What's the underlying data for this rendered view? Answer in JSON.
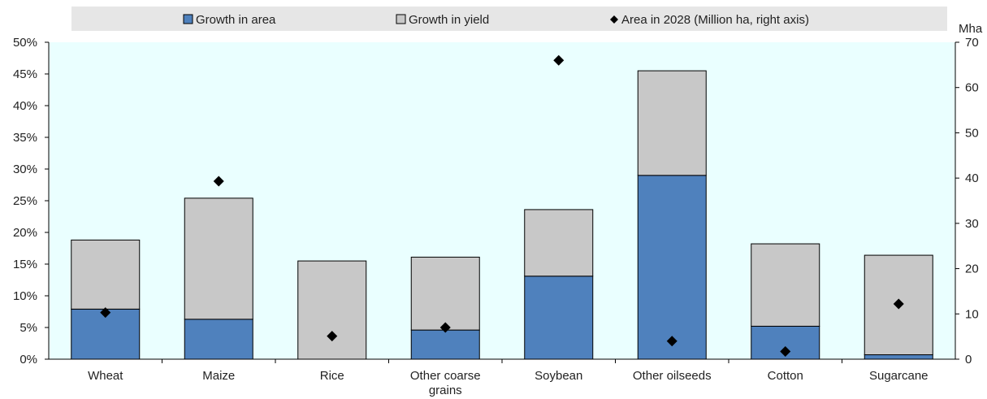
{
  "chart_data": {
    "type": "bar",
    "stacked": true,
    "categories": [
      "Wheat",
      "Maize",
      "Rice",
      "Other coarse grains",
      "Soybean",
      "Other oilseeds",
      "Cotton",
      "Sugarcane"
    ],
    "category_label_lines": [
      [
        "Wheat"
      ],
      [
        "Maize"
      ],
      [
        "Rice"
      ],
      [
        "Other coarse",
        "grains"
      ],
      [
        "Soybean"
      ],
      [
        "Other oilseeds"
      ],
      [
        "Cotton"
      ],
      [
        "Sugarcane"
      ]
    ],
    "series": [
      {
        "name": "Growth in area",
        "type": "bar",
        "axis": "left",
        "color": "#4f81bd",
        "values": [
          7.9,
          6.3,
          0.0,
          4.6,
          13.1,
          29.0,
          5.2,
          0.7
        ]
      },
      {
        "name": "Growth in yield",
        "type": "bar",
        "axis": "left",
        "color": "#c8c8c8",
        "values": [
          10.9,
          19.1,
          15.5,
          11.5,
          10.5,
          16.5,
          13.0,
          15.7
        ]
      },
      {
        "name": "Area in 2028 (Million ha, right axis)",
        "type": "marker",
        "axis": "right",
        "color": "#000000",
        "values": [
          10.3,
          39.3,
          5.1,
          7.0,
          66.0,
          4.0,
          1.7,
          12.2
        ]
      }
    ],
    "y_left": {
      "ylim": [
        0,
        50
      ],
      "ticks": [
        0,
        5,
        10,
        15,
        20,
        25,
        30,
        35,
        40,
        45,
        50
      ],
      "tick_labels": [
        "0%",
        "5%",
        "10%",
        "15%",
        "20%",
        "25%",
        "30%",
        "35%",
        "40%",
        "45%",
        "50%"
      ]
    },
    "y_right": {
      "label": "Mha",
      "ylim": [
        0,
        70
      ],
      "ticks": [
        0,
        10,
        20,
        30,
        40,
        50,
        60,
        70
      ],
      "tick_labels": [
        "0",
        "10",
        "20",
        "30",
        "40",
        "50",
        "60",
        "70"
      ]
    },
    "legend_position": "top",
    "plot_background": "#eaffff",
    "legend_background": "#e6e6e6",
    "grid": false
  }
}
